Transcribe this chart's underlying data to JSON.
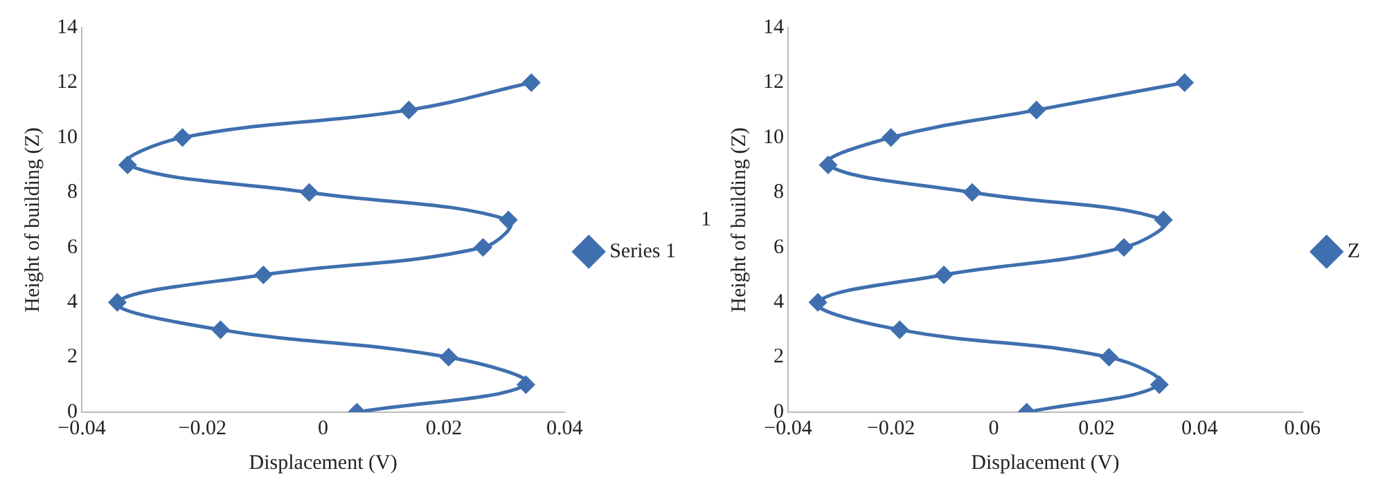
{
  "chart_data": [
    {
      "type": "line",
      "xlabel": "Displacement (V)",
      "ylabel": "Height of building (Z)",
      "xlim": [
        -0.04,
        0.04
      ],
      "xticks": [
        -0.04,
        -0.02,
        0,
        0.02,
        0.04
      ],
      "ylim": [
        0,
        14
      ],
      "yticks": [
        0,
        2,
        4,
        6,
        8,
        10,
        12,
        14
      ],
      "grid": false,
      "legend": "right",
      "marker": "diamond",
      "line_style": "solid",
      "series": [
        {
          "name": "Series 1",
          "color": "#3f6fae",
          "x": [
            0.0056,
            0.0336,
            0.0208,
            -0.017,
            -0.0341,
            -0.0099,
            0.0265,
            0.0307,
            -0.0023,
            -0.0324,
            -0.0233,
            0.0142,
            0.0345
          ],
          "values": [
            0,
            1,
            2,
            3,
            4,
            5,
            6,
            7,
            8,
            9,
            10,
            11,
            12
          ]
        }
      ]
    },
    {
      "type": "line",
      "xlabel": "Displacement (V)",
      "ylabel": "Height of building (Z)",
      "xlim": [
        -0.04,
        0.06
      ],
      "xticks": [
        -0.04,
        -0.02,
        0,
        0.02,
        0.04,
        0.06
      ],
      "ylim": [
        0,
        14
      ],
      "yticks": [
        0,
        2,
        4,
        6,
        8,
        10,
        12,
        14
      ],
      "grid": false,
      "legend": "right",
      "marker": "diamond",
      "line_style": "solid",
      "annotations": [
        "1"
      ],
      "series": [
        {
          "name": "Z",
          "color": "#3f6fae",
          "x": [
            0.0064,
            0.0322,
            0.0224,
            -0.0183,
            -0.0342,
            -0.0097,
            0.0253,
            0.033,
            -0.0042,
            -0.0322,
            -0.02,
            0.0083,
            0.0371
          ],
          "values": [
            0,
            1,
            2,
            3,
            4,
            5,
            6,
            7,
            8,
            9,
            10,
            11,
            12
          ]
        }
      ]
    }
  ]
}
